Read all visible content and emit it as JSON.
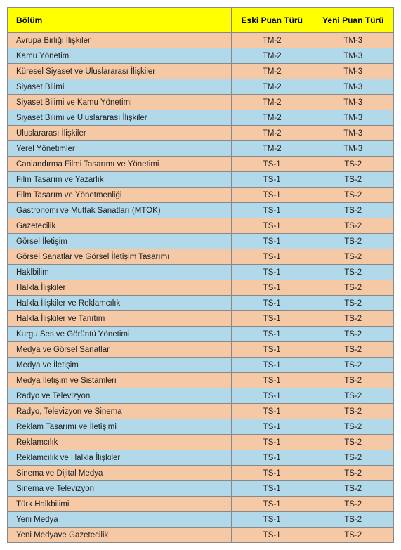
{
  "colors": {
    "header_bg": "#ffff00",
    "peach_bg": "#f6c9a6",
    "blue_bg": "#b2d9ea",
    "border": "#888888",
    "text": "#222222"
  },
  "typography": {
    "font_family": "Verdana, Geneva, sans-serif",
    "header_fontsize": 12,
    "cell_fontsize": 11.5,
    "header_weight": "bold"
  },
  "headers": {
    "bolum": "Bölüm",
    "eski": "Eski Puan Türü",
    "yeni": "Yeni Puan Türü"
  },
  "rows": [
    {
      "bolum": "Avrupa Birliği İlişkiler",
      "eski": "TM-2",
      "yeni": "TM-3"
    },
    {
      "bolum": "Kamu Yönetimi",
      "eski": "TM-2",
      "yeni": "TM-3"
    },
    {
      "bolum": "Küresel Siyaset ve Uluslararası İlişkiler",
      "eski": "TM-2",
      "yeni": "TM-3"
    },
    {
      "bolum": "Siyaset Bilimi",
      "eski": "TM-2",
      "yeni": "TM-3"
    },
    {
      "bolum": "Siyaset Bilimi ve Kamu Yönetimi",
      "eski": "TM-2",
      "yeni": "TM-3"
    },
    {
      "bolum": "Siyaset Bilimi ve Uluslararası İlişkiler",
      "eski": "TM-2",
      "yeni": "TM-3"
    },
    {
      "bolum": "Uluslararası İlişkiler",
      "eski": "TM-2",
      "yeni": "TM-3"
    },
    {
      "bolum": "Yerel Yönetimler",
      "eski": "TM-2",
      "yeni": "TM-3"
    },
    {
      "bolum": "Canlandırma Filmi Tasarımı ve Yönetimi",
      "eski": "TS-1",
      "yeni": "TS-2"
    },
    {
      "bolum": "Film Tasarım ve Yazarlık",
      "eski": "TS-1",
      "yeni": "TS-2"
    },
    {
      "bolum": "Film Tasarım ve Yönetmenliği",
      "eski": "TS-1",
      "yeni": "TS-2"
    },
    {
      "bolum": "Gastronomi ve Mutfak Sanatları (MTOK)",
      "eski": "TS-1",
      "yeni": "TS-2"
    },
    {
      "bolum": "Gazetecilik",
      "eski": "TS-1",
      "yeni": "TS-2"
    },
    {
      "bolum": "Görsel İletişim",
      "eski": "TS-1",
      "yeni": "TS-2"
    },
    {
      "bolum": "Görsel Sanatlar ve Görsel İletişim Tasarımı",
      "eski": "TS-1",
      "yeni": "TS-2"
    },
    {
      "bolum": "Haklbilim",
      "eski": "TS-1",
      "yeni": "TS-2"
    },
    {
      "bolum": "Halkla İlişkiler",
      "eski": "TS-1",
      "yeni": "TS-2"
    },
    {
      "bolum": "Halkla İlişkiler ve Reklamcılık",
      "eski": "TS-1",
      "yeni": "TS-2"
    },
    {
      "bolum": "Halkla İlişkiler ve Tanıtım",
      "eski": "TS-1",
      "yeni": "TS-2"
    },
    {
      "bolum": "Kurgu Ses ve Görüntü Yönetimi",
      "eski": "TS-1",
      "yeni": "TS-2"
    },
    {
      "bolum": "Medya ve Görsel Sanatlar",
      "eski": "TS-1",
      "yeni": "TS-2"
    },
    {
      "bolum": "Medya ve İletişim",
      "eski": "TS-1",
      "yeni": "TS-2"
    },
    {
      "bolum": "Medya İletişim ve Sistamleri",
      "eski": "TS-1",
      "yeni": "TS-2"
    },
    {
      "bolum": "Radyo ve Televizyon",
      "eski": "TS-1",
      "yeni": "TS-2"
    },
    {
      "bolum": "Radyo, Televizyon ve Sinema",
      "eski": "TS-1",
      "yeni": "TS-2"
    },
    {
      "bolum": "Reklam Tasarımı ve İletişimi",
      "eski": "TS-1",
      "yeni": "TS-2"
    },
    {
      "bolum": "Reklamcılık",
      "eski": "TS-1",
      "yeni": "TS-2"
    },
    {
      "bolum": "Reklamcılık ve Halkla İlişkiler",
      "eski": "TS-1",
      "yeni": "TS-2"
    },
    {
      "bolum": "Sinema ve Dijital Medya",
      "eski": "TS-1",
      "yeni": "TS-2"
    },
    {
      "bolum": "Sinema ve Televizyon",
      "eski": "TS-1",
      "yeni": "TS-2"
    },
    {
      "bolum": "Türk Halkbilimi",
      "eski": "TS-1",
      "yeni": "TS-2"
    },
    {
      "bolum": "Yeni Medya",
      "eski": "TS-1",
      "yeni": "TS-2"
    },
    {
      "bolum": "Yeni Medyave Gazetecilik",
      "eski": "TS-1",
      "yeni": "TS-2"
    }
  ]
}
